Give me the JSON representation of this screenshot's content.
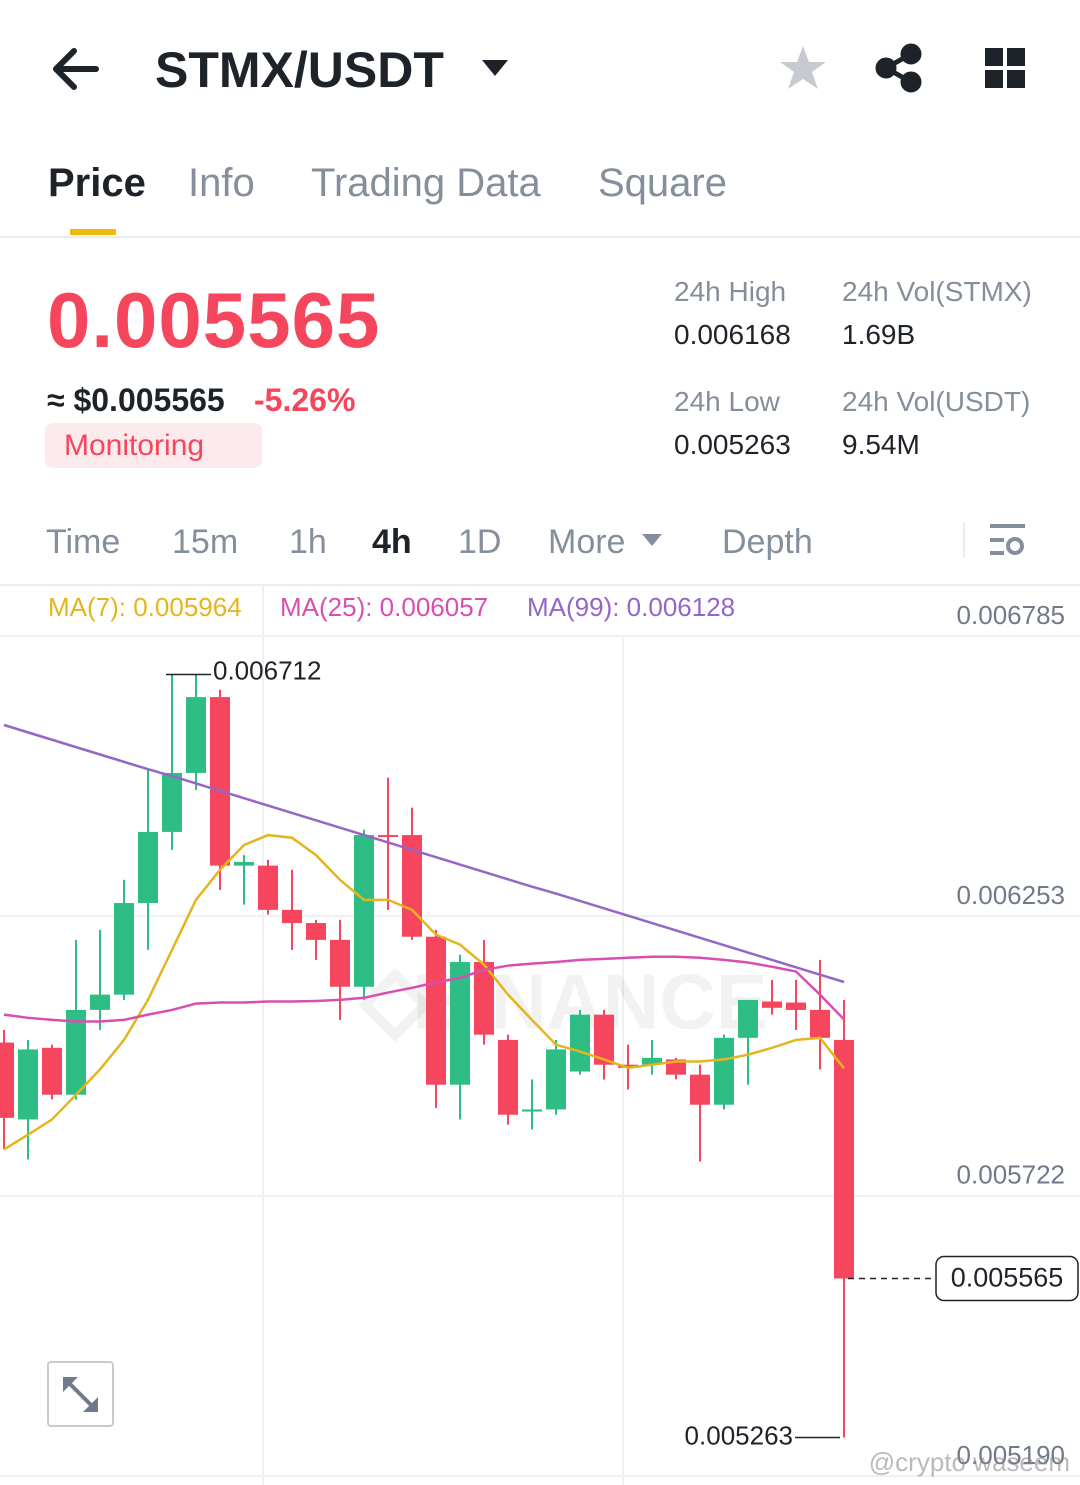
{
  "header": {
    "title": "STMX/USDT"
  },
  "tabs": [
    "Price",
    "Info",
    "Trading Data",
    "Square"
  ],
  "price": {
    "last": "0.005565",
    "usd": "≈ $0.005565",
    "change": "-5.26%",
    "monitoring": "Monitoring"
  },
  "stats": [
    {
      "label": "24h High",
      "value": "0.006168"
    },
    {
      "label": "24h Vol(STMX)",
      "value": "1.69B"
    },
    {
      "label": "24h Low",
      "value": "0.005263"
    },
    {
      "label": "24h Vol(USDT)",
      "value": "9.54M"
    }
  ],
  "intervals": [
    "Time",
    "15m",
    "1h",
    "4h",
    "1D",
    "More",
    "Depth"
  ],
  "watermarks": [
    "BINANCE",
    "@crypto waseem"
  ],
  "chart_data": {
    "type": "candlestick",
    "up_color": "#2ebd85",
    "down_color": "#f6465d",
    "grid": true,
    "ylim": [
      0.00519,
      0.006785
    ],
    "yticks": [
      0.006785,
      0.006253,
      0.005722,
      {
        "value": 0.00519,
        "label": "0.005190"
      }
    ],
    "open": [
      0.006013,
      0.005867,
      0.006003,
      0.005914,
      0.006075,
      0.006104,
      0.006278,
      0.006413,
      0.006525,
      0.006669,
      0.006349,
      0.006349,
      0.006265,
      0.00624,
      0.006208,
      0.006119,
      0.006407,
      0.006407,
      0.006214,
      0.005933,
      0.006166,
      0.006018,
      0.005882,
      0.005886,
      0.005958,
      0.006066,
      0.005971,
      0.005971,
      0.005981,
      0.005952,
      0.005895,
      0.006022,
      0.006091,
      0.006089,
      0.006075,
      0.006018
    ],
    "high": [
      0.006037,
      0.006018,
      0.006009,
      0.006208,
      0.006227,
      0.006322,
      0.006531,
      0.006712,
      0.006712,
      0.006683,
      0.006369,
      0.00636,
      0.006341,
      0.006246,
      0.006246,
      0.006417,
      0.006516,
      0.006459,
      0.006227,
      0.00618,
      0.006208,
      0.006028,
      0.005943,
      0.006018,
      0.006075,
      0.006075,
      0.006009,
      0.006018,
      0.005984,
      0.005971,
      0.006028,
      0.006094,
      0.006132,
      0.006132,
      0.00617,
      0.006094
    ],
    "low": [
      0.00581,
      0.005791,
      0.005905,
      0.005905,
      0.006037,
      0.006094,
      0.006189,
      0.006379,
      0.006493,
      0.006303,
      0.006275,
      0.006256,
      0.006189,
      0.00617,
      0.006056,
      0.006094,
      0.006265,
      0.006208,
      0.005889,
      0.005867,
      0.006009,
      0.005857,
      0.005848,
      0.005876,
      0.005952,
      0.005943,
      0.005924,
      0.005952,
      0.005943,
      0.005787,
      0.005886,
      0.005933,
      0.006066,
      0.006037,
      0.005962,
      0.005263
    ],
    "close": [
      0.00587,
      0.006,
      0.005914,
      0.006075,
      0.006104,
      0.006278,
      0.006413,
      0.006525,
      0.006669,
      0.006349,
      0.006356,
      0.006265,
      0.00624,
      0.006208,
      0.006119,
      0.006407,
      0.006404,
      0.006214,
      0.005933,
      0.006166,
      0.006028,
      0.005876,
      0.005886,
      0.006,
      0.006066,
      0.005971,
      0.005965,
      0.005984,
      0.005952,
      0.005895,
      0.006022,
      0.006094,
      0.006079,
      0.006075,
      0.006022,
      0.005565
    ],
    "series": [
      {
        "name": "MA(7): 0.005964",
        "color": "#e5b51e",
        "values": [
          0.00581,
          0.005838,
          0.005867,
          0.005914,
          0.005962,
          0.006018,
          0.006094,
          0.006189,
          0.006284,
          0.006341,
          0.006388,
          0.006407,
          0.006402,
          0.006369,
          0.006322,
          0.006284,
          0.006284,
          0.006265,
          0.006218,
          0.006199,
          0.006161,
          0.006104,
          0.006056,
          0.006009,
          0.005996,
          0.005981,
          0.005965,
          0.005971,
          0.005977,
          0.005977,
          0.005981,
          0.00599,
          0.006003,
          0.006018,
          0.006022,
          0.005964
        ]
      },
      {
        "name": "MA(25): 0.006057",
        "color": "#d94fb0",
        "values": [
          0.006066,
          0.00606,
          0.006056,
          0.006053,
          0.006053,
          0.006056,
          0.006066,
          0.006075,
          0.006087,
          0.006089,
          0.006089,
          0.006091,
          0.006091,
          0.006092,
          0.006094,
          0.006098,
          0.006108,
          0.006117,
          0.006127,
          0.006136,
          0.006151,
          0.006159,
          0.006163,
          0.006166,
          0.00617,
          0.006172,
          0.006174,
          0.006176,
          0.006176,
          0.006174,
          0.00617,
          0.006165,
          0.006157,
          0.006148,
          0.006104,
          0.006057
        ]
      },
      {
        "name": "MA(99): 0.006128",
        "color": "#9466c6",
        "values": [
          0.006616,
          0.006602,
          0.006588,
          0.006574,
          0.00656,
          0.006546,
          0.006532,
          0.006519,
          0.006505,
          0.006491,
          0.006477,
          0.006463,
          0.006449,
          0.006435,
          0.006421,
          0.006407,
          0.006393,
          0.006379,
          0.006365,
          0.006351,
          0.006337,
          0.006323,
          0.006309,
          0.006296,
          0.006282,
          0.006268,
          0.006254,
          0.00624,
          0.006226,
          0.006212,
          0.006198,
          0.006184,
          0.00617,
          0.006156,
          0.006142,
          0.006128
        ]
      }
    ],
    "max_label": 0.006712,
    "min_label": 0.005263,
    "last_price": 0.005565
  }
}
